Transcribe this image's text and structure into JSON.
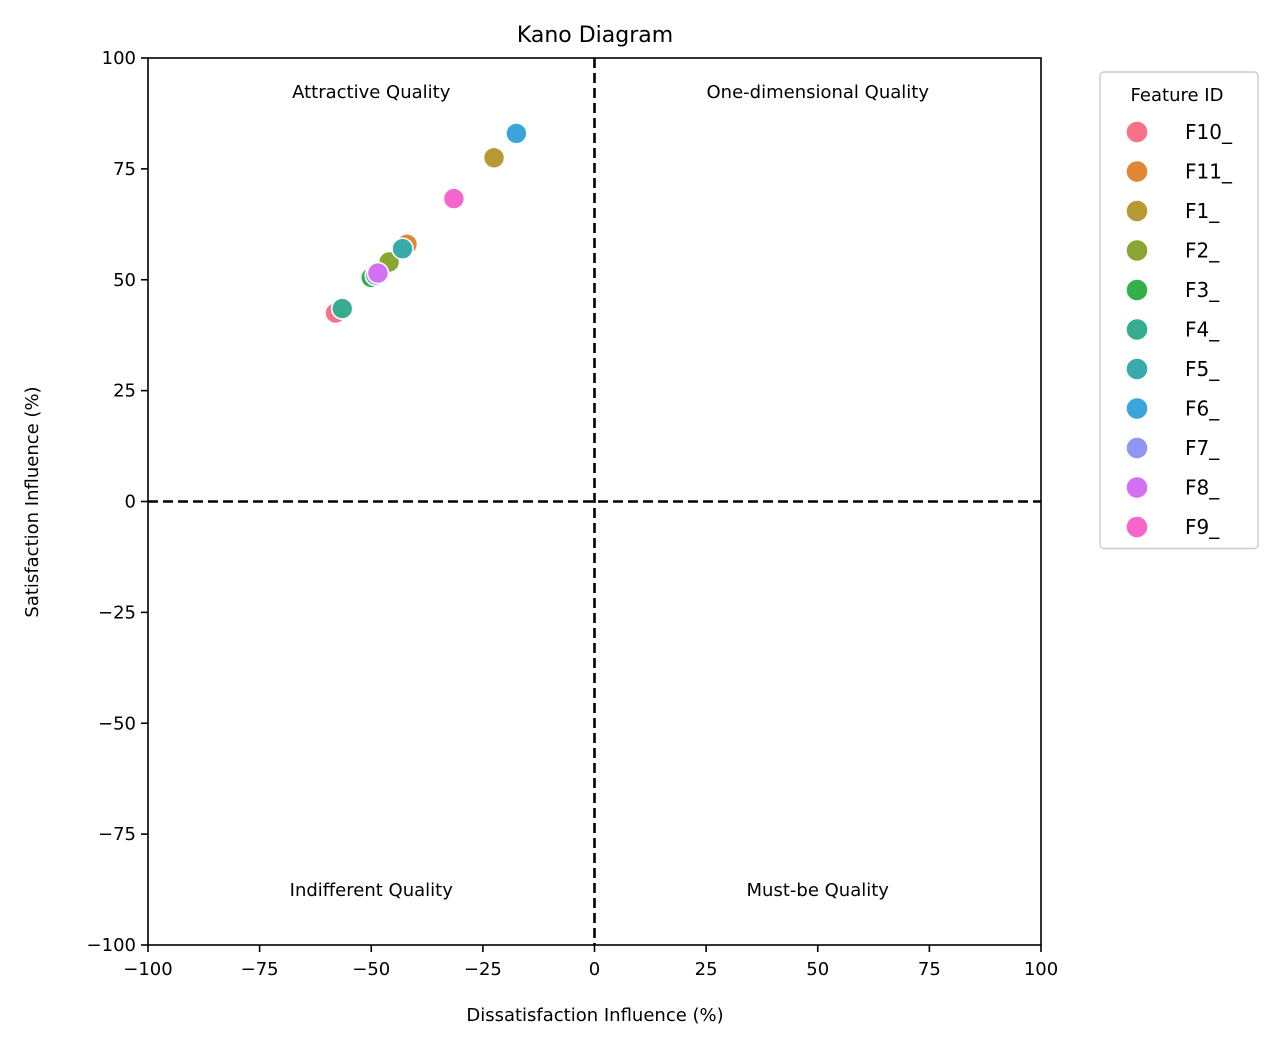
{
  "chart_data": {
    "type": "scatter",
    "title": "Kano Diagram",
    "xlabel": "Dissatisfaction Influence (%)",
    "ylabel": "Satisfaction Influence (%)",
    "xlim": [
      -100,
      100
    ],
    "ylim": [
      -100,
      100
    ],
    "xticks": [
      -100,
      -75,
      -50,
      -25,
      0,
      25,
      50,
      75,
      100
    ],
    "yticks": [
      -100,
      -75,
      -50,
      -25,
      0,
      25,
      50,
      75,
      100
    ],
    "xtick_labels": [
      "−100",
      "−75",
      "−50",
      "−25",
      "0",
      "25",
      "50",
      "75",
      "100"
    ],
    "ytick_labels": [
      "−100",
      "−75",
      "−50",
      "−25",
      "0",
      "25",
      "50",
      "75",
      "100"
    ],
    "grid": false,
    "reference_lines": {
      "x": 0,
      "y": 0,
      "style": "dashed",
      "color": "#000000"
    },
    "quadrant_labels": [
      {
        "text": "Attractive Quality",
        "x": -50,
        "y": 91
      },
      {
        "text": "One-dimensional Quality",
        "x": 50,
        "y": 91
      },
      {
        "text": "Indifferent Quality",
        "x": -50,
        "y": -89
      },
      {
        "text": "Must-be Quality",
        "x": 50,
        "y": -89
      }
    ],
    "legend": {
      "title": "Feature ID",
      "placement": "outside-right-top"
    },
    "series": [
      {
        "name": "F10_",
        "color": "#f77189",
        "x": [
          -58
        ],
        "y": [
          42.5
        ]
      },
      {
        "name": "F11_",
        "color": "#e18632",
        "x": [
          -42
        ],
        "y": [
          58
        ]
      },
      {
        "name": "F1_",
        "color": "#b79a33",
        "x": [
          -22.5
        ],
        "y": [
          77.5
        ]
      },
      {
        "name": "F2_",
        "color": "#8ba533",
        "x": [
          -46
        ],
        "y": [
          54
        ]
      },
      {
        "name": "F3_",
        "color": "#33b04a",
        "x": [
          -50
        ],
        "y": [
          50.5
        ]
      },
      {
        "name": "F4_",
        "color": "#36ad8f",
        "x": [
          -56.5
        ],
        "y": [
          43.5
        ]
      },
      {
        "name": "F5_",
        "color": "#38aaac",
        "x": [
          -43
        ],
        "y": [
          57
        ]
      },
      {
        "name": "F6_",
        "color": "#3aa5da",
        "x": [
          -17.5
        ],
        "y": [
          83
        ]
      },
      {
        "name": "F7_",
        "color": "#8f95f2",
        "x": [
          -49
        ],
        "y": [
          51
        ]
      },
      {
        "name": "F8_",
        "color": "#d470f4",
        "x": [
          -48.5
        ],
        "y": [
          51.5
        ]
      },
      {
        "name": "F9_",
        "color": "#f565cc",
        "x": [
          -31.5
        ],
        "y": [
          68.3
        ]
      }
    ]
  }
}
